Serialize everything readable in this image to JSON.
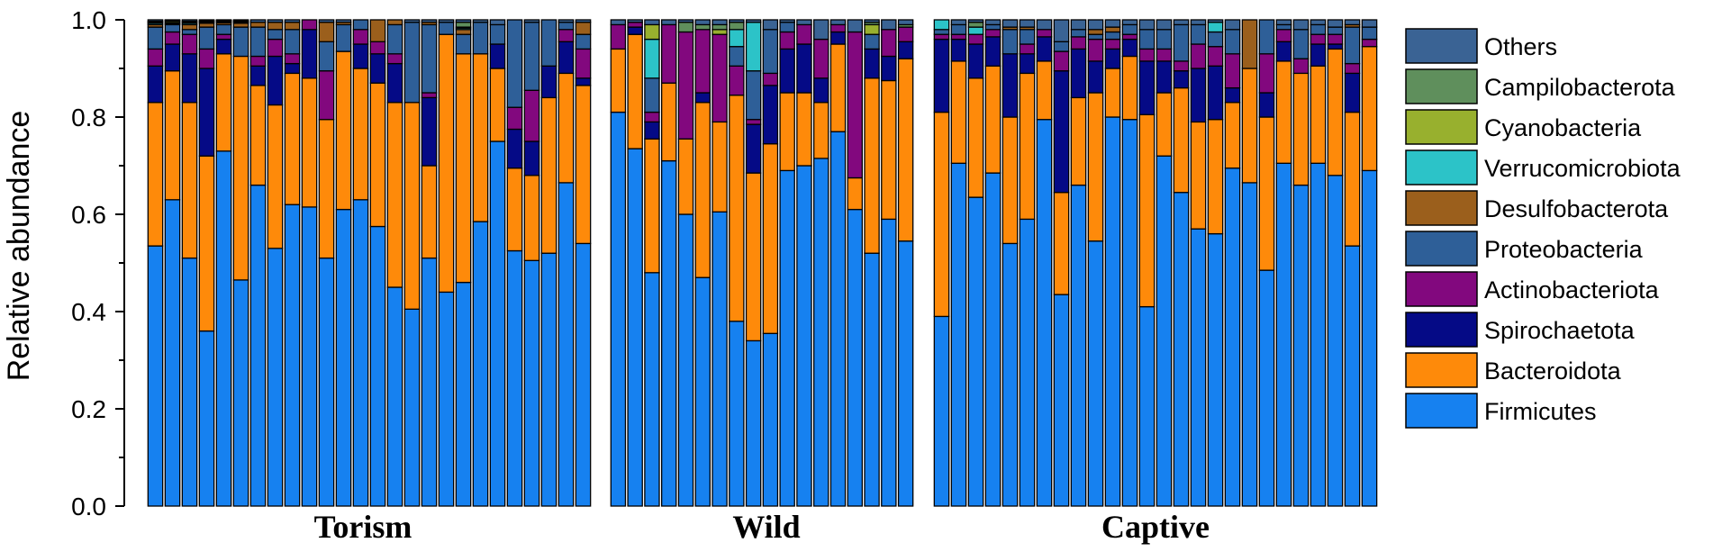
{
  "chart_data": {
    "type": "bar",
    "stacked": true,
    "ylabel": "Relative abundance",
    "ylim": [
      0,
      1
    ],
    "yticks": [
      "0.0",
      "0.2",
      "0.4",
      "0.6",
      "0.8",
      "1.0"
    ],
    "legend_position": "right",
    "series": [
      {
        "name": "Firmicutes",
        "color": "#1681f0"
      },
      {
        "name": "Bacteroidota",
        "color": "#fe8a0a"
      },
      {
        "name": "Spirochaetota",
        "color": "#050a86"
      },
      {
        "name": "Actinobacteriota",
        "color": "#82087e"
      },
      {
        "name": "Proteobacteria",
        "color": "#2e5f98"
      },
      {
        "name": "Desulfobacterota",
        "color": "#9b5f1c"
      },
      {
        "name": "Verrucomicrobiota",
        "color": "#2cc3c8"
      },
      {
        "name": "Cyanobacteria",
        "color": "#98b02e"
      },
      {
        "name": "Campilobacterota",
        "color": "#5f8f5c"
      },
      {
        "name": "Others",
        "color": "#3a6394"
      }
    ],
    "groups": [
      {
        "name": "Torism",
        "samples": [
          {
            "values": [
              0.535,
              0.295,
              0.075,
              0.035,
              0.045,
              0.005,
              0.003,
              0.002,
              0.002,
              0.003
            ]
          },
          {
            "values": [
              0.63,
              0.265,
              0.055,
              0.025,
              0.015,
              0.002,
              0.002,
              0.003,
              0.002,
              0.001
            ]
          },
          {
            "values": [
              0.51,
              0.32,
              0.1,
              0.04,
              0.01,
              0.01,
              0.003,
              0.002,
              0.002,
              0.003
            ]
          },
          {
            "values": [
              0.36,
              0.36,
              0.18,
              0.04,
              0.045,
              0.008,
              0.002,
              0.002,
              0.001,
              0.002
            ]
          },
          {
            "values": [
              0.73,
              0.2,
              0.03,
              0.01,
              0.02,
              0.004,
              0.002,
              0.002,
              0.001,
              0.001
            ]
          },
          {
            "values": [
              0.465,
              0.46,
              0.0,
              0.0,
              0.06,
              0.008,
              0.002,
              0.002,
              0.001,
              0.002
            ]
          },
          {
            "values": [
              0.66,
              0.205,
              0.04,
              0.02,
              0.06,
              0.01,
              0.0,
              0.0,
              0.0,
              0.005
            ]
          },
          {
            "values": [
              0.53,
              0.295,
              0.1,
              0.035,
              0.02,
              0.015,
              0.0,
              0.0,
              0.0,
              0.005
            ]
          },
          {
            "values": [
              0.62,
              0.27,
              0.02,
              0.02,
              0.05,
              0.015,
              0.0,
              0.0,
              0.0,
              0.005
            ]
          },
          {
            "values": [
              0.615,
              0.265,
              0.1,
              0.02,
              0.0,
              0.0,
              0.0,
              0.0,
              0.0,
              0.0
            ]
          },
          {
            "values": [
              0.51,
              0.285,
              0.0,
              0.1,
              0.06,
              0.04,
              0.0,
              0.0,
              0.0,
              0.005
            ]
          },
          {
            "values": [
              0.61,
              0.325,
              0.0,
              0.0,
              0.055,
              0.005,
              0.0,
              0.0,
              0.0,
              0.005
            ]
          },
          {
            "values": [
              0.63,
              0.27,
              0.05,
              0.03,
              0.02,
              0.0,
              0.0,
              0.0,
              0.0,
              0.0
            ]
          },
          {
            "values": [
              0.575,
              0.295,
              0.06,
              0.025,
              0.0,
              0.045,
              0.0,
              0.0,
              0.0,
              0.0
            ]
          },
          {
            "values": [
              0.45,
              0.38,
              0.08,
              0.02,
              0.06,
              0.01,
              0.0,
              0.0,
              0.0,
              0.0
            ]
          },
          {
            "values": [
              0.405,
              0.425,
              0.0,
              0.0,
              0.165,
              0.0,
              0.0,
              0.0,
              0.0,
              0.005
            ]
          },
          {
            "values": [
              0.51,
              0.19,
              0.14,
              0.01,
              0.14,
              0.005,
              0.0,
              0.0,
              0.0,
              0.005
            ]
          },
          {
            "values": [
              0.44,
              0.53,
              0.0,
              0.0,
              0.025,
              0.0,
              0.0,
              0.0,
              0.0,
              0.005
            ]
          },
          {
            "values": [
              0.46,
              0.47,
              0.0,
              0.0,
              0.04,
              0.01,
              0.003,
              0.002,
              0.01,
              0.005
            ]
          },
          {
            "values": [
              0.585,
              0.345,
              0.0,
              0.0,
              0.065,
              0.0,
              0.0,
              0.0,
              0.0,
              0.005
            ]
          },
          {
            "values": [
              0.75,
              0.15,
              0.05,
              0.0,
              0.04,
              0.0,
              0.0,
              0.0,
              0.0,
              0.01
            ]
          },
          {
            "values": [
              0.525,
              0.17,
              0.08,
              0.045,
              0.18,
              0.0,
              0.0,
              0.0,
              0.0,
              0.0
            ]
          },
          {
            "values": [
              0.505,
              0.175,
              0.07,
              0.105,
              0.14,
              0.0,
              0.0,
              0.0,
              0.0,
              0.005
            ]
          },
          {
            "values": [
              0.52,
              0.32,
              0.065,
              0.0,
              0.095,
              0.0,
              0.0,
              0.0,
              0.0,
              0.0
            ]
          },
          {
            "values": [
              0.665,
              0.225,
              0.065,
              0.025,
              0.015,
              0.0,
              0.0,
              0.0,
              0.0,
              0.005
            ]
          },
          {
            "values": [
              0.54,
              0.325,
              0.015,
              0.06,
              0.03,
              0.025,
              0.0,
              0.0,
              0.0,
              0.005
            ]
          }
        ]
      },
      {
        "name": "Wild",
        "samples": [
          {
            "values": [
              0.81,
              0.13,
              0.0,
              0.05,
              0.0,
              0.0,
              0.0,
              0.0,
              0.0,
              0.01
            ]
          },
          {
            "values": [
              0.735,
              0.235,
              0.015,
              0.01,
              0.0,
              0.0,
              0.0,
              0.0,
              0.0,
              0.005
            ]
          },
          {
            "values": [
              0.48,
              0.275,
              0.035,
              0.02,
              0.07,
              0.0,
              0.08,
              0.03,
              0.0,
              0.01
            ]
          },
          {
            "values": [
              0.71,
              0.16,
              0.0,
              0.12,
              0.0,
              0.0,
              0.0,
              0.0,
              0.0,
              0.01
            ]
          },
          {
            "values": [
              0.6,
              0.155,
              0.0,
              0.22,
              0.0,
              0.0,
              0.0,
              0.0,
              0.02,
              0.005
            ]
          },
          {
            "values": [
              0.47,
              0.36,
              0.02,
              0.13,
              0.0,
              0.0,
              0.0,
              0.0,
              0.01,
              0.01
            ]
          },
          {
            "values": [
              0.605,
              0.185,
              0.0,
              0.18,
              0.0,
              0.0,
              0.0,
              0.01,
              0.01,
              0.01
            ]
          },
          {
            "values": [
              0.38,
              0.465,
              0.0,
              0.06,
              0.04,
              0.0,
              0.035,
              0.0,
              0.015,
              0.005
            ]
          },
          {
            "values": [
              0.34,
              0.345,
              0.1,
              0.01,
              0.1,
              0.0,
              0.1,
              0.0,
              0.0,
              0.005
            ]
          },
          {
            "values": [
              0.355,
              0.39,
              0.12,
              0.025,
              0.09,
              0.0,
              0.0,
              0.0,
              0.0,
              0.02
            ]
          },
          {
            "values": [
              0.69,
              0.16,
              0.09,
              0.035,
              0.02,
              0.0,
              0.0,
              0.0,
              0.0,
              0.005
            ]
          },
          {
            "values": [
              0.7,
              0.15,
              0.1,
              0.04,
              0.0,
              0.0,
              0.0,
              0.0,
              0.0,
              0.01
            ]
          },
          {
            "values": [
              0.715,
              0.115,
              0.05,
              0.08,
              0.0,
              0.0,
              0.0,
              0.0,
              0.0,
              0.04
            ]
          },
          {
            "values": [
              0.77,
              0.18,
              0.025,
              0.015,
              0.0,
              0.0,
              0.0,
              0.0,
              0.0,
              0.01
            ]
          },
          {
            "values": [
              0.61,
              0.065,
              0.0,
              0.3,
              0.0,
              0.0,
              0.0,
              0.0,
              0.0,
              0.025
            ]
          },
          {
            "values": [
              0.52,
              0.36,
              0.06,
              0.0,
              0.03,
              0.0,
              0.0,
              0.02,
              0.005,
              0.005
            ]
          },
          {
            "values": [
              0.59,
              0.285,
              0.05,
              0.055,
              0.0,
              0.0,
              0.0,
              0.0,
              0.0,
              0.02
            ]
          },
          {
            "values": [
              0.545,
              0.375,
              0.035,
              0.03,
              0.0,
              0.0,
              0.0,
              0.0,
              0.005,
              0.01
            ]
          }
        ]
      },
      {
        "name": "Captive",
        "samples": [
          {
            "values": [
              0.39,
              0.42,
              0.15,
              0.01,
              0.01,
              0.0,
              0.02,
              0.0,
              0.0,
              0.0
            ]
          },
          {
            "values": [
              0.705,
              0.21,
              0.045,
              0.01,
              0.02,
              0.0,
              0.0,
              0.0,
              0.0,
              0.01
            ]
          },
          {
            "values": [
              0.635,
              0.245,
              0.07,
              0.02,
              0.0,
              0.0,
              0.015,
              0.0,
              0.01,
              0.005
            ]
          },
          {
            "values": [
              0.685,
              0.22,
              0.06,
              0.015,
              0.01,
              0.0,
              0.0,
              0.0,
              0.0,
              0.01
            ]
          },
          {
            "values": [
              0.54,
              0.26,
              0.13,
              0.0,
              0.05,
              0.005,
              0.0,
              0.0,
              0.0,
              0.015
            ]
          },
          {
            "values": [
              0.59,
              0.3,
              0.04,
              0.02,
              0.03,
              0.005,
              0.0,
              0.0,
              0.0,
              0.015
            ]
          },
          {
            "values": [
              0.795,
              0.12,
              0.05,
              0.015,
              0.0,
              0.0,
              0.0,
              0.0,
              0.0,
              0.02
            ]
          },
          {
            "values": [
              0.435,
              0.21,
              0.25,
              0.04,
              0.02,
              0.0,
              0.0,
              0.0,
              0.0,
              0.045
            ]
          },
          {
            "values": [
              0.66,
              0.18,
              0.1,
              0.025,
              0.015,
              0.0,
              0.0,
              0.0,
              0.0,
              0.02
            ]
          },
          {
            "values": [
              0.545,
              0.305,
              0.065,
              0.045,
              0.01,
              0.01,
              0.0,
              0.0,
              0.0,
              0.02
            ]
          },
          {
            "values": [
              0.8,
              0.1,
              0.04,
              0.02,
              0.015,
              0.01,
              0.0,
              0.0,
              0.0,
              0.015
            ]
          },
          {
            "values": [
              0.795,
              0.13,
              0.035,
              0.01,
              0.02,
              0.0,
              0.0,
              0.0,
              0.0,
              0.01
            ]
          },
          {
            "values": [
              0.41,
              0.395,
              0.11,
              0.025,
              0.04,
              0.0,
              0.0,
              0.0,
              0.0,
              0.02
            ]
          },
          {
            "values": [
              0.72,
              0.13,
              0.065,
              0.025,
              0.04,
              0.0,
              0.0,
              0.0,
              0.0,
              0.02
            ]
          },
          {
            "values": [
              0.645,
              0.215,
              0.035,
              0.02,
              0.075,
              0.0,
              0.0,
              0.0,
              0.0,
              0.01
            ]
          },
          {
            "values": [
              0.57,
              0.22,
              0.11,
              0.05,
              0.04,
              0.0,
              0.0,
              0.0,
              0.0,
              0.01
            ]
          },
          {
            "values": [
              0.56,
              0.235,
              0.11,
              0.04,
              0.03,
              0.0,
              0.02,
              0.0,
              0.0,
              0.005
            ]
          },
          {
            "values": [
              0.695,
              0.135,
              0.03,
              0.07,
              0.05,
              0.0,
              0.0,
              0.0,
              0.0,
              0.02
            ]
          },
          {
            "values": [
              0.665,
              0.235,
              0.0,
              0.0,
              0.0,
              0.1,
              0.0,
              0.0,
              0.0,
              0.0
            ]
          },
          {
            "values": [
              0.485,
              0.315,
              0.05,
              0.08,
              0.07,
              0.0,
              0.0,
              0.0,
              0.0,
              0.0
            ]
          },
          {
            "values": [
              0.705,
              0.21,
              0.04,
              0.025,
              0.01,
              0.0,
              0.0,
              0.0,
              0.0,
              0.01
            ]
          },
          {
            "values": [
              0.66,
              0.23,
              0.0,
              0.03,
              0.06,
              0.0,
              0.0,
              0.0,
              0.0,
              0.02
            ]
          },
          {
            "values": [
              0.705,
              0.2,
              0.045,
              0.02,
              0.02,
              0.0,
              0.0,
              0.0,
              0.0,
              0.01
            ]
          },
          {
            "values": [
              0.68,
              0.26,
              0.01,
              0.02,
              0.015,
              0.0,
              0.0,
              0.0,
              0.0,
              0.015
            ]
          },
          {
            "values": [
              0.535,
              0.275,
              0.08,
              0.02,
              0.075,
              0.005,
              0.0,
              0.0,
              0.0,
              0.01
            ]
          },
          {
            "values": [
              0.69,
              0.255,
              0.0,
              0.015,
              0.025,
              0.0,
              0.0,
              0.0,
              0.0,
              0.015
            ]
          }
        ]
      }
    ]
  }
}
